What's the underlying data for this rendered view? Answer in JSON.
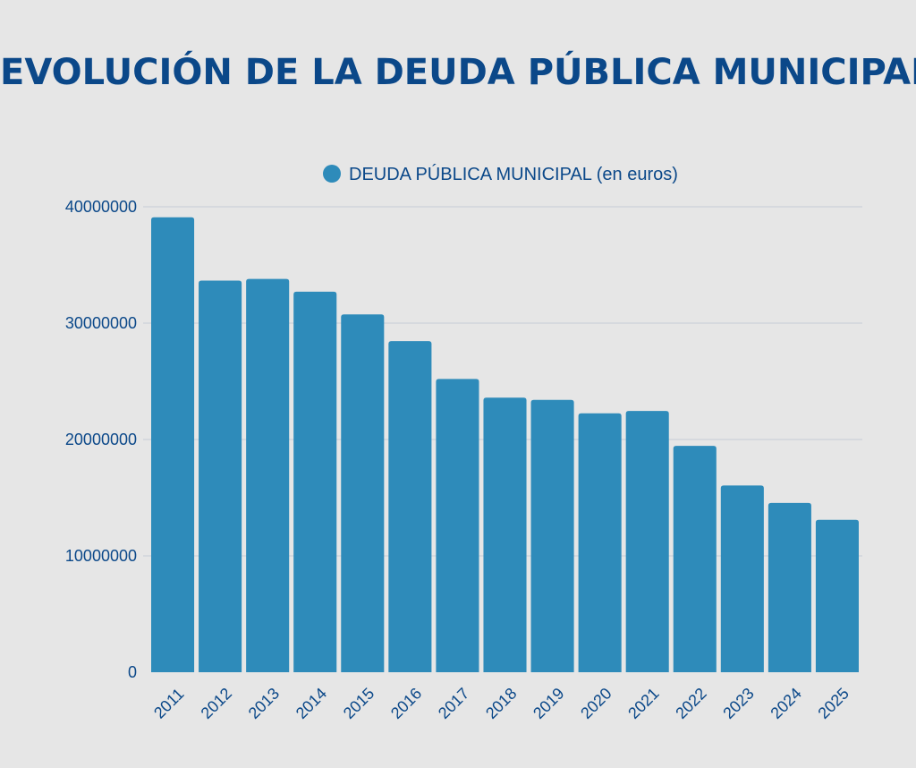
{
  "title": "EVOLUCIÓN DE LA DEUDA PÚBLICA MUNICIPAL",
  "colors": {
    "background": "#e6e6e6",
    "bar": "#2e8bba",
    "text": "#0b4889",
    "grid": "#c5ccd6"
  },
  "chart_data": {
    "type": "bar",
    "title": "EVOLUCIÓN DE LA DEUDA PÚBLICA MUNICIPAL",
    "xlabel": "",
    "ylabel": "",
    "categories": [
      "2011",
      "2012",
      "2013",
      "2014",
      "2015",
      "2016",
      "2017",
      "2018",
      "2019",
      "2020",
      "2021",
      "2022",
      "2023",
      "2024",
      "2025"
    ],
    "series": [
      {
        "name": "DEUDA PÚBLICA MUNICIPAL (en euros)",
        "values": [
          39100000,
          33650000,
          33800000,
          32700000,
          30750000,
          28450000,
          25200000,
          23600000,
          23400000,
          22250000,
          22450000,
          19450000,
          16050000,
          14550000,
          13100000
        ]
      }
    ],
    "ylim": [
      0,
      40000000
    ],
    "yticks": [
      0,
      10000000,
      20000000,
      30000000,
      40000000
    ],
    "ytick_labels": [
      "0",
      "10000000",
      "20000000",
      "30000000",
      "40000000"
    ],
    "grid": true,
    "legend": "top-center"
  }
}
